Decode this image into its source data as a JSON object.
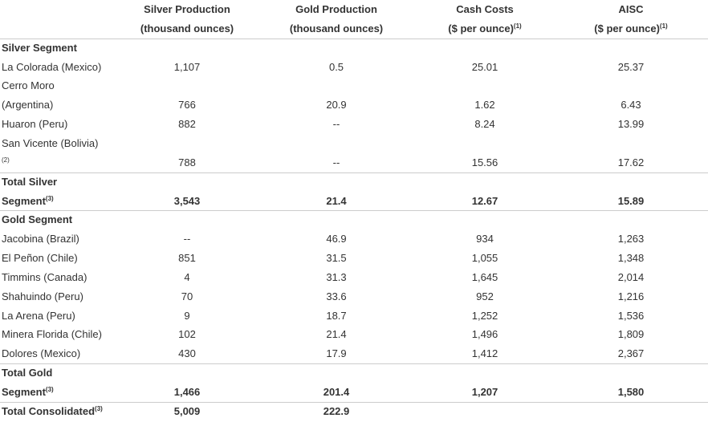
{
  "header": {
    "columns": [
      {
        "line1": "Silver Production",
        "line2": "(thousand ounces)"
      },
      {
        "line1": "Gold Production",
        "line2": "(thousand ounces)"
      },
      {
        "line1": "Cash Costs",
        "line2": "($ per ounce)",
        "note": "(1)"
      },
      {
        "line1": "AISC",
        "line2": "($ per ounce)",
        "note": "(1)"
      }
    ]
  },
  "sections": [
    {
      "heading": "Silver Segment",
      "rows": [
        {
          "label": [
            "La Colorada (Mexico)"
          ],
          "values": [
            "1,107",
            "0.5",
            "25.01",
            "25.37"
          ]
        },
        {
          "label": [
            "Cerro Moro",
            "(Argentina)"
          ],
          "values": [
            "766",
            "20.9",
            "1.62",
            "6.43"
          ]
        },
        {
          "label": [
            "Huaron (Peru)"
          ],
          "values": [
            "882",
            "--",
            "8.24",
            "13.99"
          ]
        },
        {
          "label": [
            "San Vicente (Bolivia)",
            {
              "sup": "(2)"
            }
          ],
          "values": [
            "788",
            "--",
            "15.56",
            "17.62"
          ]
        }
      ],
      "total": {
        "label": [
          "Total Silver",
          {
            "text": "Segment",
            "sup": "(3)"
          }
        ],
        "values": [
          "3,543",
          "21.4",
          "12.67",
          "15.89"
        ]
      }
    },
    {
      "heading": "Gold Segment",
      "rows": [
        {
          "label": [
            "Jacobina (Brazil)"
          ],
          "values": [
            "--",
            "46.9",
            "934",
            "1,263"
          ]
        },
        {
          "label": [
            "El Peñon (Chile)"
          ],
          "values": [
            "851",
            "31.5",
            "1,055",
            "1,348"
          ]
        },
        {
          "label": [
            "Timmins (Canada)"
          ],
          "values": [
            "4",
            "31.3",
            "1,645",
            "2,014"
          ]
        },
        {
          "label": [
            "Shahuindo (Peru)"
          ],
          "values": [
            "70",
            "33.6",
            "952",
            "1,216"
          ]
        },
        {
          "label": [
            "La Arena (Peru)"
          ],
          "values": [
            "9",
            "18.7",
            "1,252",
            "1,536"
          ]
        },
        {
          "label": [
            "Minera Florida (Chile)"
          ],
          "values": [
            "102",
            "21.4",
            "1,496",
            "1,809"
          ]
        },
        {
          "label": [
            "Dolores (Mexico)"
          ],
          "values": [
            "430",
            "17.9",
            "1,412",
            "2,367"
          ]
        }
      ],
      "total": {
        "label": [
          "Total Gold",
          {
            "text": "Segment",
            "sup": "(3)"
          }
        ],
        "values": [
          "1,466",
          "201.4",
          "1,207",
          "1,580"
        ]
      }
    }
  ],
  "grand_total": {
    "label": [
      {
        "text": "Total Consolidated",
        "sup": "(3)"
      }
    ],
    "values": [
      "5,009",
      "222.9"
    ]
  }
}
